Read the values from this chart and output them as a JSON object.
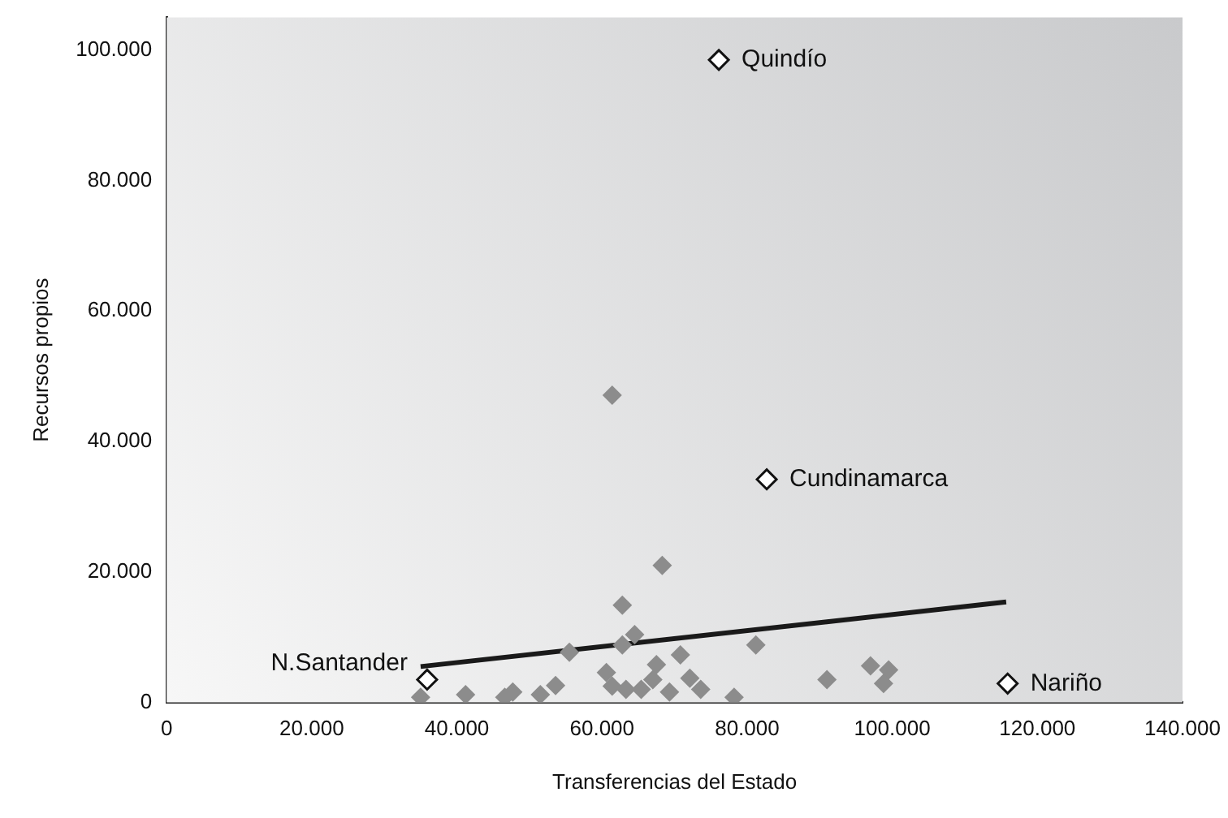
{
  "chart_data": {
    "type": "scatter",
    "xlabel": "Transferencias del Estado",
    "ylabel": "Recursos propios",
    "legend": false,
    "grid": false,
    "xlim": [
      0,
      140000
    ],
    "xticks": [
      0,
      {
        "value": 20000,
        "label": "20.000"
      },
      {
        "value": 40000,
        "label": "40.000"
      },
      {
        "value": 60000,
        "label": "60.000"
      },
      {
        "value": 80000,
        "label": "80.000"
      },
      {
        "value": 100000,
        "label": "100.000"
      },
      {
        "value": 120000,
        "label": "120.000"
      },
      {
        "value": 140000,
        "label": "140.000"
      }
    ],
    "ylim": [
      0,
      105000
    ],
    "yticks": [
      0,
      {
        "value": 20000,
        "label": "20.000"
      },
      {
        "value": 40000,
        "label": "40.000"
      },
      {
        "value": 60000,
        "label": "60.000"
      },
      {
        "value": 80000,
        "label": "80.000"
      },
      {
        "value": 100000,
        "label": "100.000"
      }
    ],
    "series": [
      {
        "marker": "diamond",
        "color": "#8c8c8c",
        "x": [
          61400,
          68300,
          62800,
          64500,
          62800,
          55500,
          70800,
          67500,
          60600,
          67000,
          72100,
          73600,
          61400,
          63300,
          65400,
          69300,
          53600,
          51500,
          47700,
          46600,
          41200,
          35000,
          78200,
          81200,
          91000,
          97000,
          99500,
          98800
        ],
        "values": [
          47100,
          21000,
          14900,
          10400,
          8800,
          7700,
          7300,
          5800,
          4600,
          3500,
          3700,
          2000,
          2500,
          2000,
          2000,
          1600,
          2600,
          1200,
          1600,
          800,
          1200,
          800,
          800,
          8800,
          3500,
          5600,
          5000,
          2900
        ]
      },
      {
        "marker": "diamond",
        "color": "#ffffff",
        "x": [
          76100,
          82700,
          35900,
          115900
        ],
        "values": [
          98500,
          34200,
          3500,
          2900
        ]
      },
      {
        "type": "line",
        "marker": "none",
        "color": "#1a1a1a",
        "x": [
          35000,
          115700
        ],
        "values": [
          5500,
          15400
        ]
      }
    ],
    "annotations": [
      {
        "text": "Quindío",
        "x": 76100,
        "y": 98500
      },
      {
        "text": "Cundinamarca",
        "x": 82700,
        "y": 34200
      },
      {
        "text": "N.Santander",
        "x": 35900,
        "y": 3500
      },
      {
        "text": "Nariño",
        "x": 115900,
        "y": 2900
      }
    ]
  }
}
